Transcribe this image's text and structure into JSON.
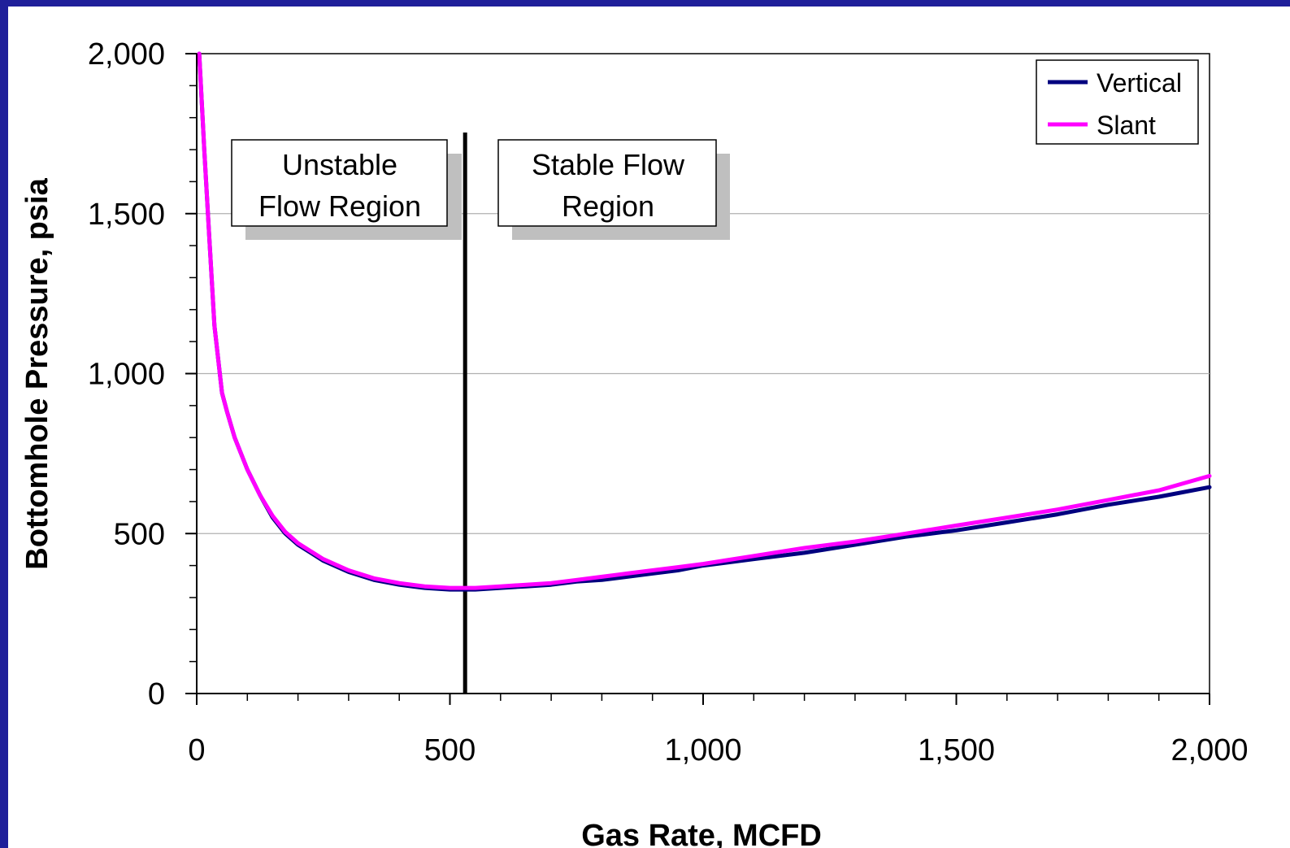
{
  "chart_data": {
    "type": "line",
    "title": "",
    "xlabel": "Gas Rate, MCFD",
    "ylabel": "Bottomhole Pressure, psia",
    "xlim": [
      0,
      2000
    ],
    "ylim": [
      0,
      2000
    ],
    "x_ticks": [
      "0",
      "500",
      "1,000",
      "1,500",
      "2,000"
    ],
    "y_ticks": [
      "0",
      "500",
      "1,000",
      "1,500",
      "2,000"
    ],
    "x_tick_values": [
      0,
      500,
      1000,
      1500,
      2000
    ],
    "y_tick_values": [
      0,
      500,
      1000,
      1500,
      2000
    ],
    "grid": "horizontal",
    "legend_position": "top-right",
    "x": [
      5,
      15,
      25,
      35,
      50,
      60,
      75,
      100,
      125,
      150,
      175,
      200,
      250,
      300,
      350,
      400,
      450,
      500,
      530,
      550,
      600,
      650,
      700,
      750,
      800,
      850,
      900,
      950,
      1000,
      1100,
      1200,
      1300,
      1400,
      1500,
      1600,
      1700,
      1800,
      1900,
      2000
    ],
    "series": [
      {
        "name": "Vertical",
        "color": "#00007f",
        "values": [
          2000,
          1700,
          1420,
          1150,
          940,
          880,
          800,
          700,
          620,
          550,
          500,
          465,
          415,
          380,
          355,
          340,
          330,
          325,
          325,
          325,
          330,
          335,
          340,
          350,
          355,
          365,
          375,
          385,
          400,
          420,
          440,
          465,
          490,
          510,
          535,
          560,
          590,
          615,
          645
        ]
      },
      {
        "name": "Slant",
        "color": "#ff00ff",
        "values": [
          2000,
          1700,
          1420,
          1150,
          940,
          880,
          800,
          700,
          620,
          555,
          505,
          470,
          420,
          385,
          360,
          345,
          335,
          330,
          330,
          330,
          335,
          340,
          345,
          355,
          365,
          375,
          385,
          395,
          405,
          430,
          455,
          475,
          500,
          525,
          550,
          575,
          605,
          635,
          680
        ]
      }
    ],
    "vline": {
      "x": 530,
      "color": "#000000"
    },
    "annotations": [
      {
        "id": "unstable",
        "lines": [
          "Unstable",
          "Flow Region"
        ]
      },
      {
        "id": "stable",
        "lines": [
          "Stable Flow",
          "Region"
        ]
      }
    ]
  }
}
